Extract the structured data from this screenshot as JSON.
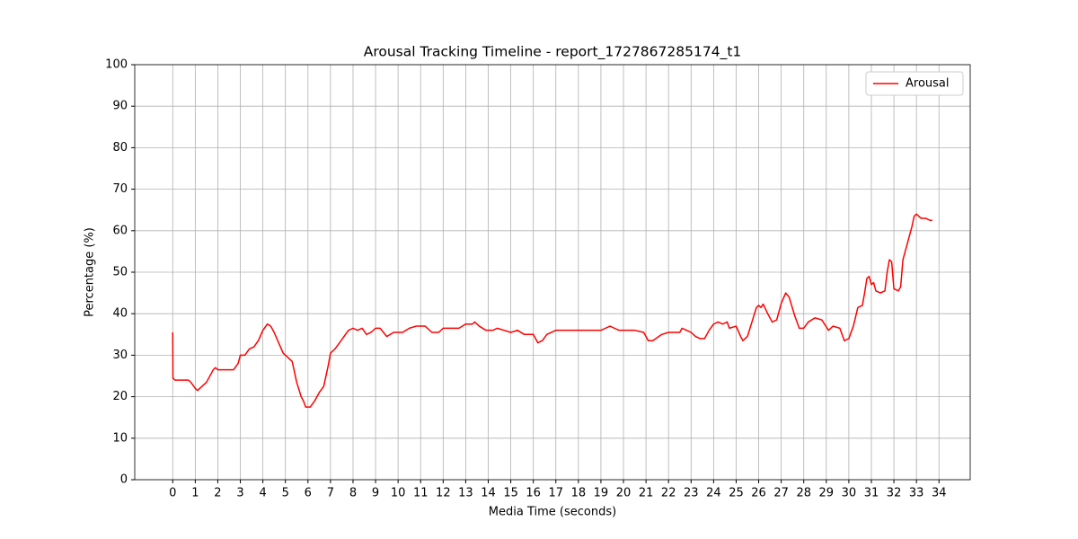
{
  "chart_data": {
    "type": "line",
    "title": "Arousal Tracking Timeline - report_1727867285174_t1",
    "xlabel": "Media Time (seconds)",
    "ylabel": "Percentage (%)",
    "x": [
      0,
      0.01,
      0.1,
      0.5,
      0.7,
      0.8,
      1.0,
      1.1,
      1.3,
      1.5,
      1.7,
      1.8,
      1.9,
      2.0,
      2.5,
      2.7,
      2.9,
      3.0,
      3.2,
      3.4,
      3.6,
      3.8,
      4.0,
      4.2,
      4.35,
      4.5,
      4.7,
      4.9,
      5.1,
      5.3,
      5.5,
      5.7,
      5.8,
      5.9,
      6.1,
      6.3,
      6.5,
      6.7,
      6.9,
      7.0,
      7.2,
      7.4,
      7.6,
      7.8,
      8.0,
      8.2,
      8.4,
      8.6,
      8.8,
      9.0,
      9.2,
      9.5,
      9.8,
      10.0,
      10.2,
      10.5,
      10.8,
      11.2,
      11.5,
      11.8,
      12.0,
      12.5,
      12.7,
      13.0,
      13.3,
      13.4,
      13.6,
      13.9,
      14.2,
      14.4,
      14.7,
      15.0,
      15.3,
      15.6,
      15.8,
      16.0,
      16.2,
      16.4,
      16.6,
      17.0,
      18.0,
      19.0,
      19.2,
      19.4,
      19.6,
      19.8,
      20.5,
      20.9,
      21.1,
      21.3,
      21.7,
      22.0,
      22.5,
      22.6,
      22.8,
      23.0,
      23.2,
      23.4,
      23.6,
      23.8,
      24.0,
      24.2,
      24.4,
      24.6,
      24.7,
      25.0,
      25.2,
      25.3,
      25.5,
      25.7,
      25.9,
      26.0,
      26.1,
      26.2,
      26.4,
      26.6,
      26.8,
      27.0,
      27.2,
      27.35,
      27.6,
      27.8,
      28.0,
      28.2,
      28.5,
      28.8,
      29.1,
      29.3,
      29.6,
      29.8,
      30.0,
      30.2,
      30.4,
      30.6,
      30.7,
      30.8,
      30.9,
      31.0,
      31.1,
      31.2,
      31.4,
      31.6,
      31.7,
      31.8,
      31.9,
      32.0,
      32.2,
      32.3,
      32.4,
      32.6,
      32.8,
      32.9,
      33.0,
      33.2,
      33.4,
      33.6,
      33.7
    ],
    "series": [
      {
        "name": "Arousal",
        "color": "#ff0000",
        "values": [
          35.5,
          24.5,
          24,
          24,
          24,
          23.5,
          22,
          21.5,
          22.5,
          23.5,
          25.5,
          26.5,
          27,
          26.5,
          26.5,
          26.5,
          28,
          30,
          30,
          31.5,
          32,
          33.5,
          36,
          37.5,
          37,
          35.5,
          33,
          30.5,
          29.5,
          28.5,
          23.5,
          20,
          19,
          17.5,
          17.5,
          19,
          21,
          22.5,
          27.5,
          30.5,
          31.5,
          33,
          34.5,
          36,
          36.5,
          36,
          36.5,
          35,
          35.5,
          36.5,
          36.5,
          34.5,
          35.5,
          35.5,
          35.5,
          36.5,
          37,
          37,
          35.5,
          35.5,
          36.5,
          36.5,
          36.5,
          37.5,
          37.5,
          38,
          37,
          36,
          36,
          36.5,
          36,
          35.5,
          36,
          35,
          35,
          35,
          33,
          33.5,
          35,
          36,
          36,
          36,
          36.5,
          37,
          36.5,
          36,
          36,
          35.5,
          33.5,
          33.5,
          35,
          35.5,
          35.5,
          36.5,
          36,
          35.5,
          34.5,
          34,
          34,
          36,
          37.5,
          38,
          37.5,
          38,
          36.5,
          37,
          34.5,
          33.5,
          34.5,
          38,
          41.5,
          42,
          41.5,
          42.3,
          40,
          38,
          38.5,
          42.5,
          45,
          44,
          39.5,
          36.5,
          36.5,
          38,
          39,
          38.5,
          36,
          37,
          36.5,
          33.5,
          34,
          37,
          41.5,
          42,
          45,
          48.5,
          49,
          47,
          47.5,
          45.5,
          45,
          45.5,
          50,
          53,
          52.5,
          46,
          45.5,
          46.5,
          53,
          57,
          61,
          63.5,
          64,
          63,
          63,
          62.5,
          62.5
        ]
      }
    ],
    "xlim": [
      -1.685,
      35.385
    ],
    "ylim": [
      0,
      100
    ],
    "xticks": [
      0,
      1,
      2,
      3,
      4,
      5,
      6,
      7,
      8,
      9,
      10,
      11,
      12,
      13,
      14,
      15,
      16,
      17,
      18,
      19,
      20,
      21,
      22,
      23,
      24,
      25,
      26,
      27,
      28,
      29,
      30,
      31,
      32,
      33,
      34
    ],
    "yticks": [
      0,
      10,
      20,
      30,
      40,
      50,
      60,
      70,
      80,
      90,
      100
    ],
    "grid": true,
    "legend": "upper right"
  }
}
